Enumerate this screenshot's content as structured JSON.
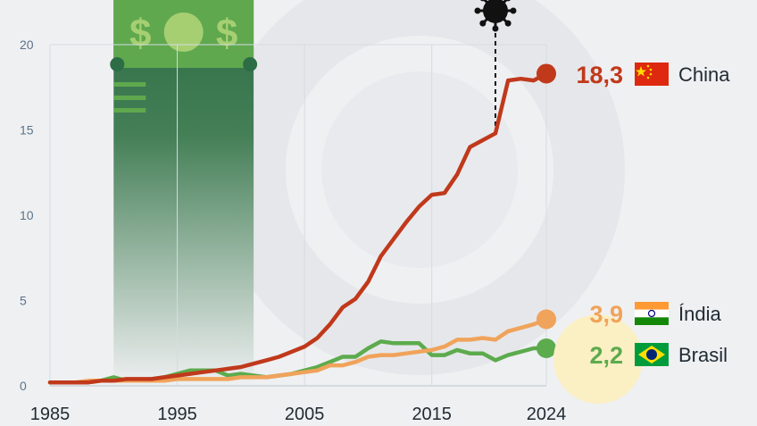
{
  "chart_data": {
    "type": "line",
    "title": "",
    "xlabel": "",
    "ylabel": "",
    "xlim": [
      1985,
      2024
    ],
    "ylim": [
      0,
      20
    ],
    "y_ticks": [
      0,
      5,
      10,
      15,
      20
    ],
    "y_tick_labels": [
      "0",
      "5",
      "10",
      "15",
      "20"
    ],
    "x_ticks": [
      1985,
      1995,
      2005,
      2015,
      2024
    ],
    "x_tick_labels": [
      "1985",
      "1995",
      "2005",
      "2015",
      "2024"
    ],
    "grid": "vertical",
    "highlight_band": [
      1990,
      2001
    ],
    "marker_year": 2020,
    "marker_icon": "virus-icon",
    "series": [
      {
        "name": "China",
        "color": "#c0391b",
        "end_label": "18,3",
        "flag_icon": "china-flag-icon",
        "x": [
          1985,
          1986,
          1987,
          1988,
          1989,
          1990,
          1991,
          1992,
          1993,
          1994,
          1995,
          1996,
          1997,
          1998,
          1999,
          2000,
          2001,
          2002,
          2003,
          2004,
          2005,
          2006,
          2007,
          2008,
          2009,
          2010,
          2011,
          2012,
          2013,
          2014,
          2015,
          2016,
          2017,
          2018,
          2019,
          2020,
          2021,
          2022,
          2023,
          2024
        ],
        "values": [
          0.2,
          0.2,
          0.2,
          0.2,
          0.3,
          0.3,
          0.4,
          0.4,
          0.4,
          0.5,
          0.6,
          0.7,
          0.8,
          0.9,
          1.0,
          1.1,
          1.3,
          1.5,
          1.7,
          2.0,
          2.3,
          2.8,
          3.6,
          4.6,
          5.1,
          6.1,
          7.6,
          8.6,
          9.6,
          10.5,
          11.2,
          11.3,
          12.4,
          14.0,
          14.4,
          14.8,
          17.9,
          18.0,
          17.9,
          18.3
        ]
      },
      {
        "name": "Índia",
        "color": "#f0a35a",
        "end_label": "3,9",
        "flag_icon": "india-flag-icon",
        "x": [
          1985,
          1986,
          1987,
          1988,
          1989,
          1990,
          1991,
          1992,
          1993,
          1994,
          1995,
          1996,
          1997,
          1998,
          1999,
          2000,
          2001,
          2002,
          2003,
          2004,
          2005,
          2006,
          2007,
          2008,
          2009,
          2010,
          2011,
          2012,
          2013,
          2014,
          2015,
          2016,
          2017,
          2018,
          2019,
          2020,
          2021,
          2022,
          2023,
          2024
        ],
        "values": [
          0.2,
          0.2,
          0.2,
          0.3,
          0.3,
          0.3,
          0.3,
          0.3,
          0.3,
          0.3,
          0.4,
          0.4,
          0.4,
          0.4,
          0.4,
          0.5,
          0.5,
          0.5,
          0.6,
          0.7,
          0.8,
          0.9,
          1.2,
          1.2,
          1.4,
          1.7,
          1.8,
          1.8,
          1.9,
          2.0,
          2.1,
          2.3,
          2.7,
          2.7,
          2.8,
          2.7,
          3.2,
          3.4,
          3.6,
          3.9
        ]
      },
      {
        "name": "Brasil",
        "color": "#5cab4d",
        "end_label": "2,2",
        "flag_icon": "brazil-flag-icon",
        "x": [
          1985,
          1986,
          1987,
          1988,
          1989,
          1990,
          1991,
          1992,
          1993,
          1994,
          1995,
          1996,
          1997,
          1998,
          1999,
          2000,
          2001,
          2002,
          2003,
          2004,
          2005,
          2006,
          2007,
          2008,
          2009,
          2010,
          2011,
          2012,
          2013,
          2014,
          2015,
          2016,
          2017,
          2018,
          2019,
          2020,
          2021,
          2022,
          2023,
          2024
        ],
        "values": [
          0.2,
          0.2,
          0.2,
          0.2,
          0.3,
          0.5,
          0.3,
          0.3,
          0.4,
          0.5,
          0.7,
          0.9,
          0.9,
          0.9,
          0.6,
          0.7,
          0.6,
          0.5,
          0.6,
          0.7,
          0.9,
          1.1,
          1.4,
          1.7,
          1.7,
          2.2,
          2.6,
          2.5,
          2.5,
          2.5,
          1.8,
          1.8,
          2.1,
          1.9,
          1.9,
          1.5,
          1.8,
          2.0,
          2.2,
          2.2
        ]
      }
    ]
  }
}
